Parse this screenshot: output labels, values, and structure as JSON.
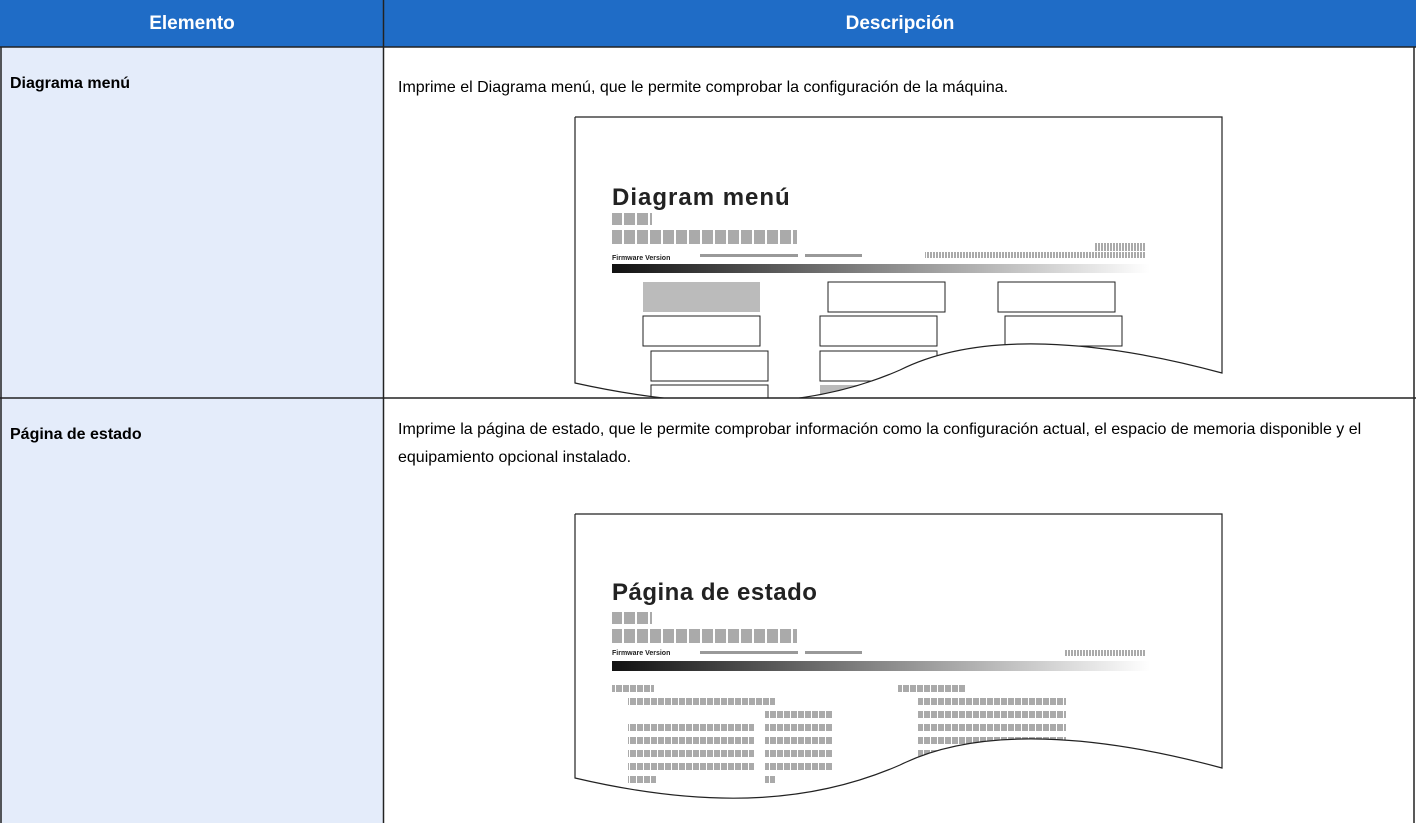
{
  "table": {
    "header": [
      "Elemento",
      "Descripción"
    ],
    "rows": [
      {
        "item": "Diagrama menú",
        "description": "Imprime el Diagrama menú, que le permite comprobar la configuración de la máquina.",
        "illustration": {
          "title": "Diagram menú",
          "firmware_label": "Firmware Version"
        }
      },
      {
        "item": "Página de estado",
        "description": "Imprime la página de estado, que le permite comprobar información como la configuración actual, el espacio de memoria disponible y el equipamiento opcional instalado.",
        "illustration": {
          "title": "Página de estado",
          "firmware_label": "Firmware Version"
        }
      }
    ]
  }
}
